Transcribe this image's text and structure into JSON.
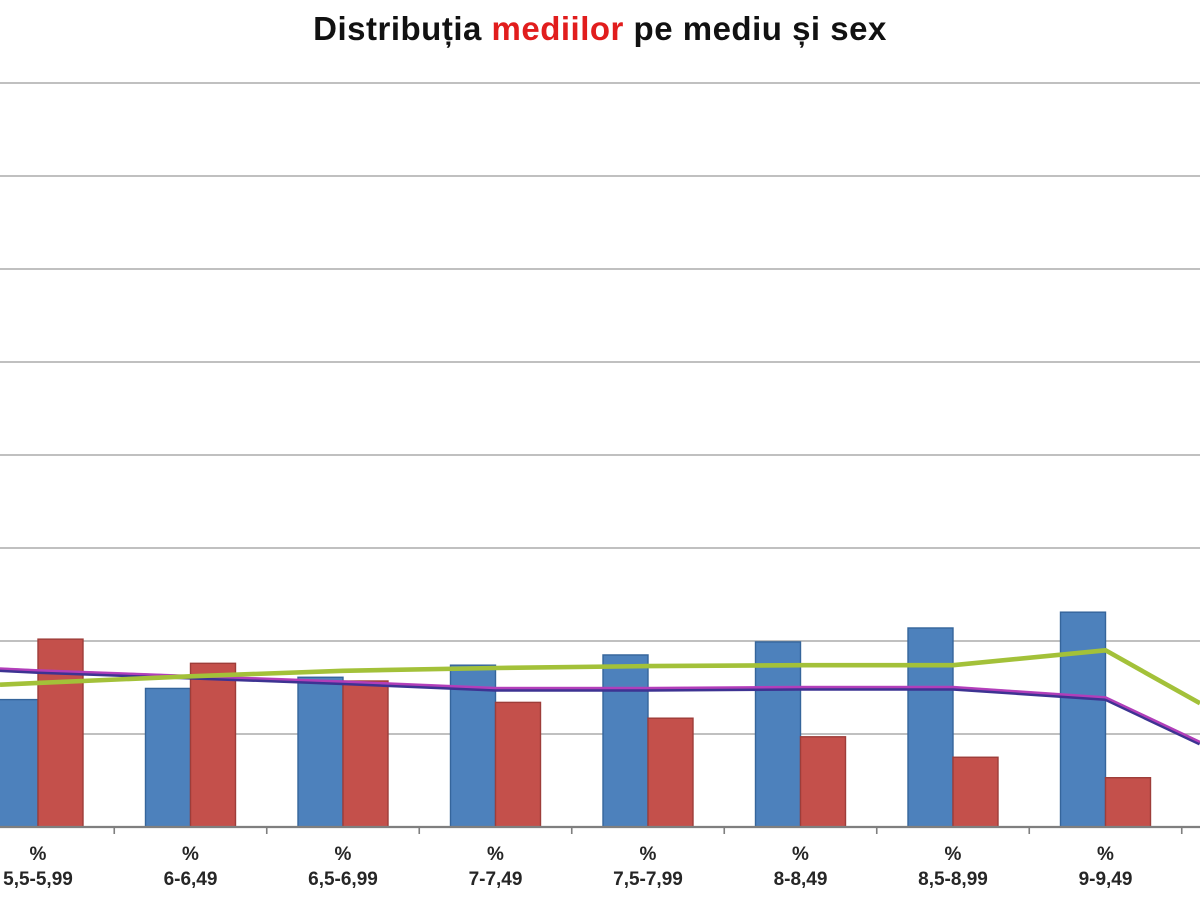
{
  "title": {
    "part1": "Distribuția ",
    "highlight": "mediilor",
    "part3": " pe mediu și sex",
    "text_color": "#111111",
    "highlight_color": "#E11D1D"
  },
  "colors": {
    "background": "#FFFFFF",
    "gridline": "#ACACAC",
    "axis": "#7F7F7F",
    "tick": "#7F7F7F",
    "bar_blue": "#4D81BC",
    "bar_blue_border": "#35659B",
    "bar_red": "#C4504B",
    "bar_red_border": "#9E3D39",
    "line_green": "#A3C139",
    "line_indigo": "#3D3392",
    "line_magenta": "#BE3FBE",
    "label_text": "#262626"
  },
  "chart_data": {
    "type": "combo-bar-line",
    "title": "Distribuția mediilor pe mediu și sex",
    "xlabel": "",
    "ylabel": "",
    "legend": {
      "visible": false
    },
    "y_axis": {
      "labels_visible": false,
      "gridline_count": 8,
      "note": "y-axis tick labels are cropped out of the image; all values below are expressed in horizontal-gridline intervals above the x-axis"
    },
    "categories": [
      {
        "line1": "%",
        "line2": "5,5-5,99"
      },
      {
        "line1": "%",
        "line2": "6-6,49"
      },
      {
        "line1": "%",
        "line2": "6,5-6,99"
      },
      {
        "line1": "%",
        "line2": "7-7,49"
      },
      {
        "line1": "%",
        "line2": "7,5-7,99"
      },
      {
        "line1": "%",
        "line2": "8-8,49"
      },
      {
        "line1": "%",
        "line2": "8,5-8,99"
      },
      {
        "line1": "%",
        "line2": "9-9,49"
      }
    ],
    "series": [
      {
        "name": "blue-bars",
        "type": "bar",
        "color": "#4D81BC",
        "values": [
          1.37,
          1.49,
          1.61,
          1.74,
          1.85,
          1.99,
          2.14,
          2.31
        ]
      },
      {
        "name": "red-bars",
        "type": "bar",
        "color": "#C4504B",
        "values": [
          2.02,
          1.76,
          1.57,
          1.34,
          1.17,
          0.97,
          0.75,
          0.53
        ]
      },
      {
        "name": "indigo-line",
        "type": "line",
        "color": "#3D3392",
        "values": [
          1.67,
          1.61,
          1.55,
          1.48,
          1.48,
          1.49,
          1.49,
          1.38
        ],
        "edge_left": 1.69,
        "edge_right": 0.9
      },
      {
        "name": "magenta-line",
        "type": "line",
        "color": "#BE3FBE",
        "values": [
          1.67,
          1.61,
          1.55,
          1.48,
          1.48,
          1.49,
          1.49,
          1.38
        ],
        "edge_left": 1.69,
        "edge_right": 0.9
      },
      {
        "name": "green-line",
        "type": "line",
        "color": "#A3C139",
        "values": [
          1.55,
          1.62,
          1.68,
          1.71,
          1.73,
          1.74,
          1.74,
          1.9
        ],
        "edge_left": 1.53,
        "edge_right": 1.33
      }
    ],
    "units": "gridline-intervals"
  }
}
